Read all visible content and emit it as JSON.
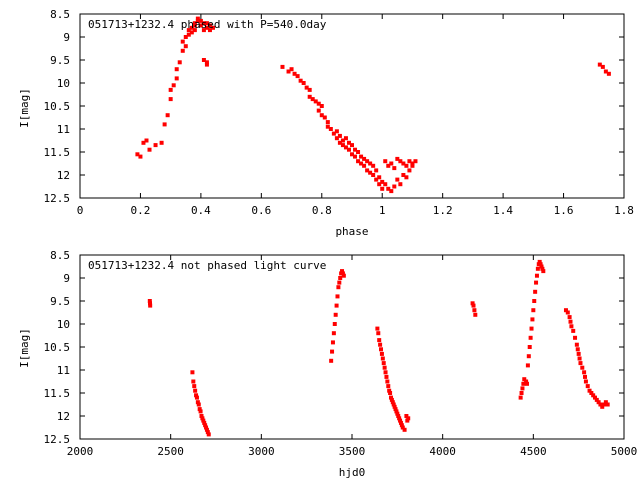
{
  "chart_data": [
    {
      "type": "scatter",
      "title": "051713+1232.4 phased with P=540.0day",
      "xlabel": "phase",
      "ylabel": "I[mag]",
      "xlim": [
        0,
        1.8
      ],
      "ylim": [
        8.5,
        12.5
      ],
      "y_inverted": true,
      "grid": false,
      "xticks": [
        "0",
        "0.2",
        "0.4",
        "0.6",
        "0.8",
        "1",
        "1.2",
        "1.4",
        "1.6",
        "1.8"
      ],
      "yticks": [
        "8.5",
        "9",
        "9.5",
        "10",
        "10.5",
        "11",
        "11.5",
        "12",
        "12.5"
      ],
      "series": [
        {
          "color": "#ff0000",
          "x": [
            0.19,
            0.2,
            0.21,
            0.22,
            0.23,
            0.25,
            0.27,
            0.28,
            0.29,
            0.3,
            0.3,
            0.31,
            0.32,
            0.32,
            0.33,
            0.34,
            0.34,
            0.35,
            0.35,
            0.36,
            0.36,
            0.37,
            0.37,
            0.38,
            0.38,
            0.38,
            0.39,
            0.39,
            0.4,
            0.4,
            0.41,
            0.41,
            0.42,
            0.42,
            0.43,
            0.43,
            0.44,
            0.41,
            0.42,
            0.42,
            0.67,
            0.69,
            0.7,
            0.71,
            0.72,
            0.73,
            0.74,
            0.75,
            0.76,
            0.76,
            0.77,
            0.78,
            0.79,
            0.79,
            0.8,
            0.8,
            0.81,
            0.82,
            0.82,
            0.83,
            0.84,
            0.85,
            0.85,
            0.86,
            0.86,
            0.87,
            0.87,
            0.88,
            0.88,
            0.89,
            0.89,
            0.9,
            0.9,
            0.91,
            0.91,
            0.92,
            0.92,
            0.93,
            0.93,
            0.94,
            0.94,
            0.95,
            0.95,
            0.96,
            0.96,
            0.97,
            0.97,
            0.98,
            0.98,
            0.99,
            0.99,
            1.0,
            1.0,
            1.01,
            1.01,
            1.02,
            1.02,
            1.03,
            1.03,
            1.04,
            1.04,
            1.05,
            1.05,
            1.06,
            1.06,
            1.07,
            1.07,
            1.08,
            1.08,
            1.09,
            1.09,
            1.1,
            1.1,
            1.11,
            1.72,
            1.73,
            1.74,
            1.75
          ],
          "y": [
            11.55,
            11.6,
            11.3,
            11.25,
            11.45,
            11.35,
            11.3,
            10.9,
            10.7,
            10.35,
            10.15,
            10.05,
            9.9,
            9.7,
            9.55,
            9.3,
            9.1,
            9.2,
            9.0,
            8.95,
            8.85,
            8.9,
            8.8,
            8.75,
            8.7,
            8.85,
            8.65,
            8.6,
            8.65,
            8.75,
            8.7,
            8.85,
            8.8,
            8.7,
            8.75,
            8.85,
            8.8,
            9.5,
            9.55,
            9.6,
            9.65,
            9.75,
            9.7,
            9.8,
            9.85,
            9.95,
            10.0,
            10.1,
            10.15,
            10.3,
            10.35,
            10.4,
            10.45,
            10.6,
            10.5,
            10.7,
            10.75,
            10.85,
            10.95,
            11.0,
            11.1,
            11.05,
            11.2,
            11.15,
            11.3,
            11.25,
            11.35,
            11.2,
            11.4,
            11.3,
            11.45,
            11.35,
            11.55,
            11.45,
            11.6,
            11.5,
            11.7,
            11.6,
            11.75,
            11.65,
            11.8,
            11.7,
            11.9,
            11.75,
            11.95,
            11.8,
            12.0,
            11.9,
            12.1,
            12.05,
            12.2,
            12.15,
            12.3,
            12.2,
            11.7,
            12.3,
            11.8,
            12.35,
            11.75,
            12.25,
            11.85,
            12.1,
            11.65,
            12.2,
            11.7,
            12.0,
            11.75,
            12.05,
            11.8,
            11.9,
            11.7,
            11.8,
            11.75,
            11.7,
            9.6,
            9.65,
            9.75,
            9.8
          ]
        }
      ]
    },
    {
      "type": "scatter",
      "title": "051713+1232.4 not phased light curve",
      "xlabel": "hjd0",
      "ylabel": "I[mag]",
      "xlim": [
        2000,
        5000
      ],
      "ylim": [
        8.5,
        12.5
      ],
      "y_inverted": true,
      "grid": false,
      "xticks": [
        "2000",
        "2500",
        "3000",
        "3500",
        "4000",
        "4500",
        "5000"
      ],
      "yticks": [
        "8.5",
        "9",
        "9.5",
        "10",
        "10.5",
        "11",
        "11.5",
        "12",
        "12.5"
      ],
      "series": [
        {
          "color": "#ff0000",
          "x": [
            2385,
            2386,
            2387,
            2620,
            2625,
            2630,
            2635,
            2640,
            2645,
            2650,
            2655,
            2660,
            2665,
            2670,
            2675,
            2680,
            2685,
            2690,
            2695,
            2700,
            2705,
            2710,
            3385,
            3390,
            3395,
            3400,
            3405,
            3410,
            3415,
            3420,
            3425,
            3430,
            3435,
            3440,
            3445,
            3450,
            3455,
            3640,
            3645,
            3650,
            3655,
            3660,
            3665,
            3670,
            3675,
            3680,
            3685,
            3690,
            3695,
            3700,
            3705,
            3710,
            3715,
            3720,
            3725,
            3730,
            3735,
            3740,
            3745,
            3750,
            3755,
            3760,
            3765,
            3770,
            3775,
            3780,
            3790,
            3800,
            3805,
            3810,
            4165,
            4170,
            4175,
            4180,
            4430,
            4435,
            4440,
            4445,
            4450,
            4460,
            4465,
            4470,
            4475,
            4480,
            4485,
            4490,
            4495,
            4500,
            4505,
            4510,
            4515,
            4520,
            4525,
            4530,
            4535,
            4540,
            4545,
            4550,
            4555,
            4680,
            4690,
            4700,
            4705,
            4710,
            4720,
            4730,
            4740,
            4745,
            4750,
            4755,
            4760,
            4770,
            4780,
            4785,
            4790,
            4800,
            4810,
            4820,
            4830,
            4840,
            4850,
            4860,
            4870,
            4880,
            4890,
            4900,
            4910
          ],
          "y": [
            9.5,
            9.55,
            9.6,
            11.05,
            11.25,
            11.35,
            11.45,
            11.55,
            11.6,
            11.7,
            11.75,
            11.85,
            11.9,
            12.0,
            12.05,
            12.1,
            12.15,
            12.2,
            12.25,
            12.3,
            12.35,
            12.4,
            10.8,
            10.6,
            10.4,
            10.2,
            10.0,
            9.8,
            9.6,
            9.4,
            9.2,
            9.1,
            9.0,
            8.9,
            8.85,
            8.9,
            8.95,
            10.1,
            10.2,
            10.35,
            10.45,
            10.55,
            10.65,
            10.75,
            10.85,
            10.95,
            11.05,
            11.15,
            11.25,
            11.35,
            11.45,
            11.5,
            11.6,
            11.65,
            11.7,
            11.75,
            11.8,
            11.85,
            11.9,
            11.95,
            12.0,
            12.05,
            12.1,
            12.15,
            12.2,
            12.25,
            12.3,
            12.0,
            12.1,
            12.05,
            9.55,
            9.6,
            9.7,
            9.8,
            11.6,
            11.5,
            11.4,
            11.3,
            11.2,
            11.25,
            11.3,
            10.9,
            10.7,
            10.5,
            10.3,
            10.1,
            9.9,
            9.7,
            9.5,
            9.3,
            9.1,
            8.95,
            8.8,
            8.7,
            8.65,
            8.7,
            8.75,
            8.8,
            8.85,
            9.7,
            9.75,
            9.85,
            9.95,
            10.05,
            10.15,
            10.3,
            10.45,
            10.55,
            10.65,
            10.75,
            10.85,
            10.95,
            11.05,
            11.15,
            11.25,
            11.35,
            11.45,
            11.5,
            11.55,
            11.6,
            11.65,
            11.7,
            11.75,
            11.8,
            11.75,
            11.7,
            11.75
          ]
        }
      ]
    }
  ]
}
